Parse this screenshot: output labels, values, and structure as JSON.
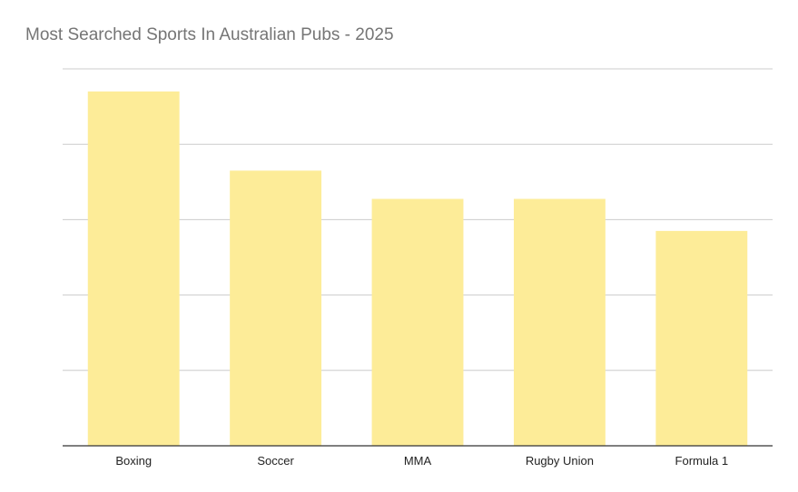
{
  "chart_data": {
    "type": "bar",
    "title": "Most Searched Sports In Australian Pubs - 2025",
    "xlabel": "",
    "ylabel": "",
    "categories": [
      "Boxing",
      "Soccer",
      "MMA",
      "Rugby Union",
      "Formula 1"
    ],
    "values": [
      94,
      73,
      65.5,
      65.5,
      57
    ],
    "ylim": [
      0,
      100
    ],
    "gridlines": 5,
    "grid": true,
    "legend": "none",
    "bar_color": "#fdec98",
    "axis_color": "#333333",
    "grid_color": "#cccccc"
  }
}
